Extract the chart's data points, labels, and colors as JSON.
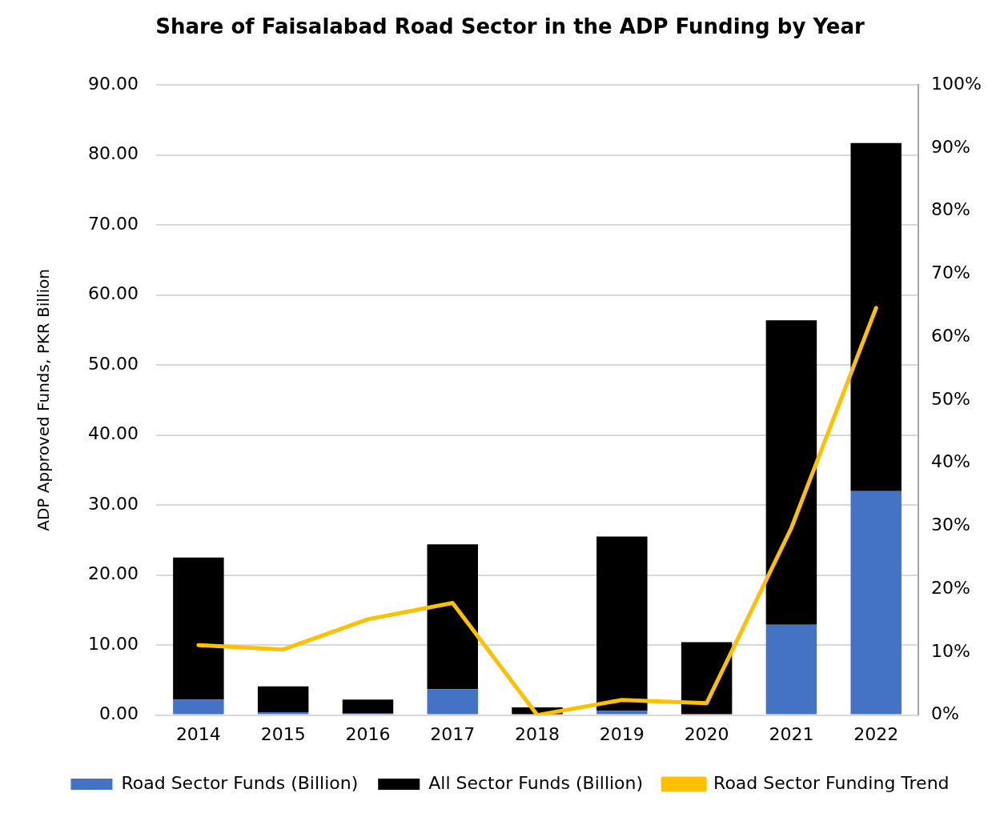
{
  "chart_data": {
    "type": "bar",
    "title": "Share of Faisalabad Road Sector in the ADP Funding by Year",
    "ylabel": "ADP Approved Funds, PKR Billion",
    "categories": [
      "2014",
      "2015",
      "2016",
      "2017",
      "2018",
      "2019",
      "2020",
      "2021",
      "2022"
    ],
    "stacked": true,
    "series": [
      {
        "name": "Road Sector Funds (Billion)",
        "color": "#4472c4",
        "values": [
          2.2,
          0.4,
          0.2,
          3.7,
          0,
          0.6,
          null,
          12.9,
          32.0
        ]
      },
      {
        "name": "All Sector Funds (Billion)",
        "color": "#000000",
        "values": [
          20.3,
          3.7,
          2.0,
          20.7,
          1.1,
          24.9,
          10.4,
          43.5,
          49.7
        ]
      },
      {
        "name": "Road Sector Funding Trend",
        "type": "line",
        "axis": "y2",
        "color": "#ffc000",
        "marker": "none",
        "line_style": "solid",
        "values": [
          11.1,
          10.4,
          15.2,
          17.8,
          0,
          2.4,
          1.9,
          29.7,
          64.6
        ]
      }
    ],
    "ylim": [
      0,
      90
    ],
    "yticks": [
      {
        "value": 0,
        "label": "0.00"
      },
      {
        "value": 10,
        "label": "10.00"
      },
      {
        "value": 20,
        "label": "20.00"
      },
      {
        "value": 30,
        "label": "30.00"
      },
      {
        "value": 40,
        "label": "40.00"
      },
      {
        "value": 50,
        "label": "50.00"
      },
      {
        "value": 60,
        "label": "60.00"
      },
      {
        "value": 70,
        "label": "70.00"
      },
      {
        "value": 80,
        "label": "80.00"
      },
      {
        "value": 90,
        "label": "90.00"
      }
    ],
    "y2lim": [
      0,
      100
    ],
    "y2ticks": [
      {
        "value": 0,
        "label": "0%"
      },
      {
        "value": 10,
        "label": "10%"
      },
      {
        "value": 20,
        "label": "20%"
      },
      {
        "value": 30,
        "label": "30%"
      },
      {
        "value": 40,
        "label": "40%"
      },
      {
        "value": 50,
        "label": "50%"
      },
      {
        "value": 60,
        "label": "60%"
      },
      {
        "value": 70,
        "label": "70%"
      },
      {
        "value": 80,
        "label": "80%"
      },
      {
        "value": 90,
        "label": "90%"
      },
      {
        "value": 100,
        "label": "100%"
      }
    ],
    "grid": "y",
    "legend": "bottom"
  }
}
